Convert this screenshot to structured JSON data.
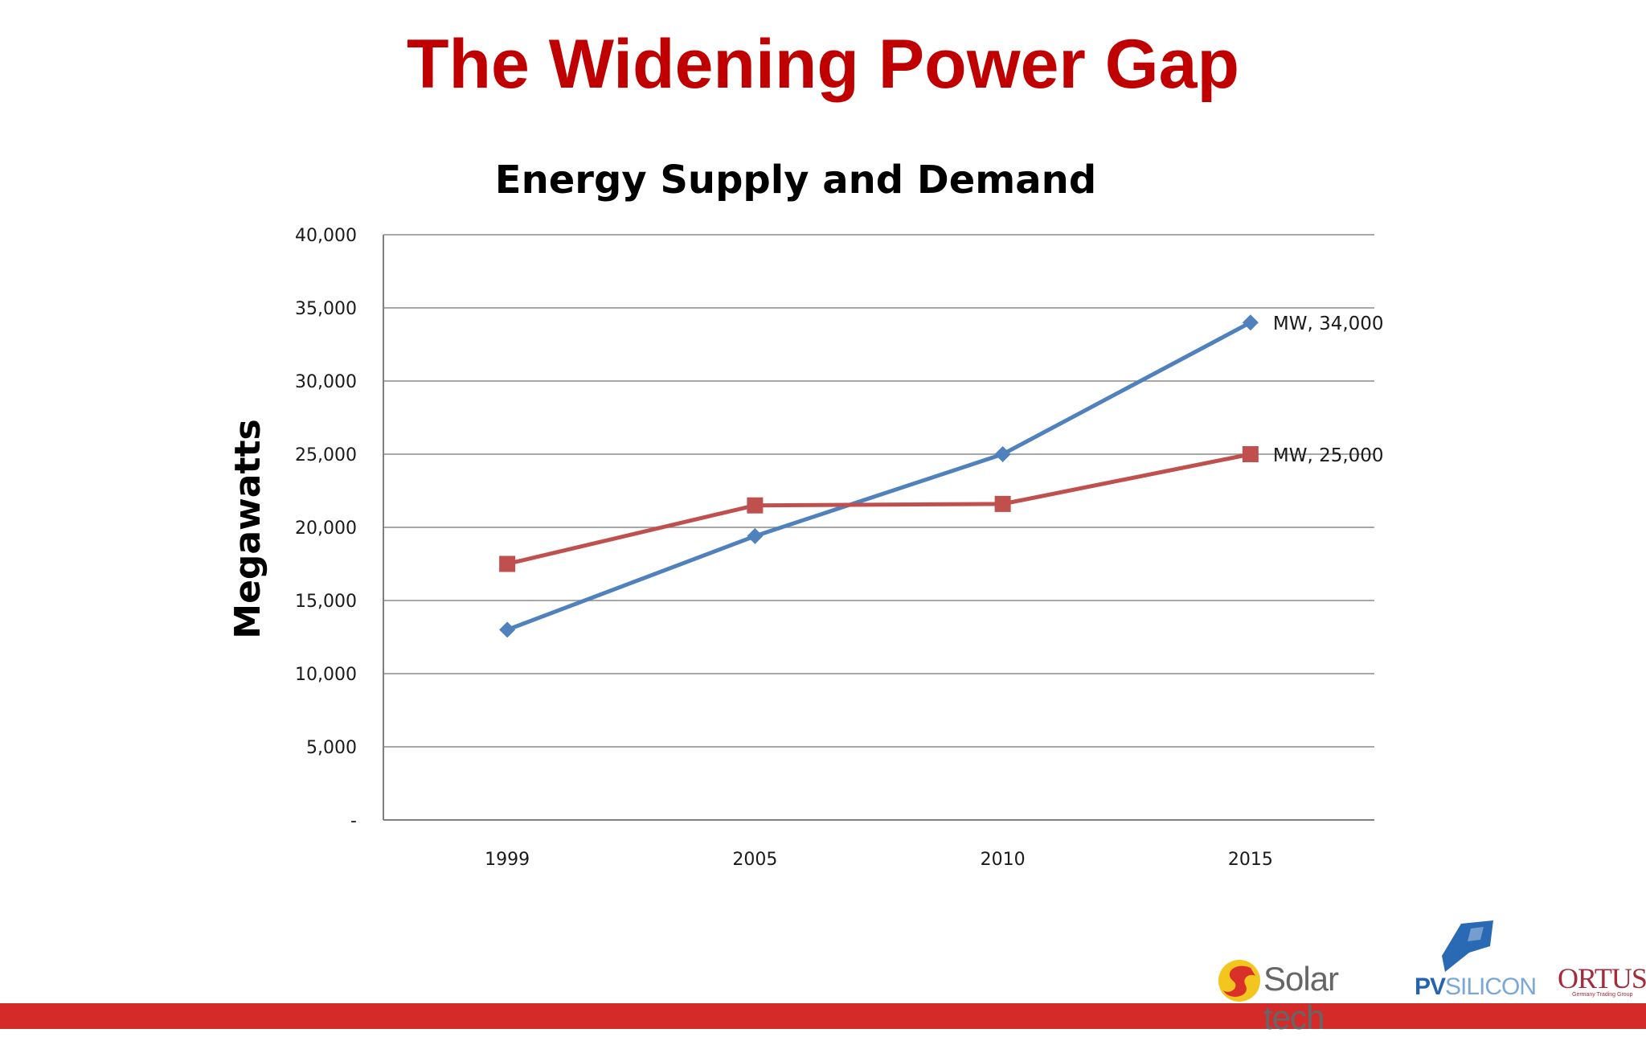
{
  "slide": {
    "title": "The Widening Power Gap"
  },
  "chart_data": {
    "type": "line",
    "title": "Energy Supply and Demand",
    "ylabel": "Megawatts",
    "xlabel": "",
    "categories": [
      "1999",
      "2005",
      "2010",
      "2015"
    ],
    "ylim": [
      0,
      40000
    ],
    "yticks": [
      0,
      5000,
      10000,
      15000,
      20000,
      25000,
      30000,
      35000,
      40000
    ],
    "ytick_labels": [
      "-",
      "5,000",
      "10,000",
      "15,000",
      "20,000",
      "25,000",
      "30,000",
      "35,000",
      "40,000"
    ],
    "grid": true,
    "series": [
      {
        "values": [
          13000,
          19400,
          25000,
          34000
        ],
        "color": "#4f81bd",
        "marker": "diamond",
        "end_label": "MW,  34,000"
      },
      {
        "values": [
          17500,
          21500,
          21600,
          25000
        ],
        "color": "#c0504d",
        "marker": "square",
        "end_label": "MW,  25,000"
      }
    ]
  },
  "logos": {
    "solartech": "Solar tech",
    "pvsilicon_a": "PV",
    "pvsilicon_b": "SILICON",
    "ortus": "ORTUS",
    "ortus_tagline": "Germany  Trading Group"
  }
}
